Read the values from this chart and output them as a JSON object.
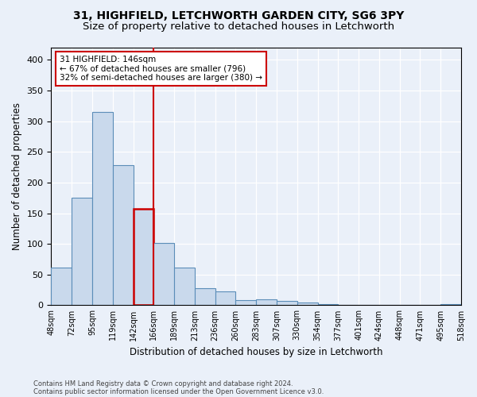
{
  "title1": "31, HIGHFIELD, LETCHWORTH GARDEN CITY, SG6 3PY",
  "title2": "Size of property relative to detached houses in Letchworth",
  "xlabel": "Distribution of detached houses by size in Letchworth",
  "ylabel": "Number of detached properties",
  "bar_values": [
    62,
    175,
    315,
    228,
    157,
    102,
    62,
    28,
    22,
    8,
    10,
    7,
    4,
    2,
    1,
    1,
    1,
    0,
    0,
    2
  ],
  "bar_labels": [
    "48sqm",
    "72sqm",
    "95sqm",
    "119sqm",
    "142sqm",
    "166sqm",
    "189sqm",
    "213sqm",
    "236sqm",
    "260sqm",
    "283sqm",
    "307sqm",
    "330sqm",
    "354sqm",
    "377sqm",
    "401sqm",
    "424sqm",
    "448sqm",
    "471sqm",
    "495sqm",
    "518sqm"
  ],
  "bar_color": "#c9d9ec",
  "bar_edge_color": "#5b8db8",
  "bar_edge_width": 0.8,
  "marker_bar_index": 4,
  "marker_color": "#cc0000",
  "annotation_line1": "31 HIGHFIELD: 146sqm",
  "annotation_line2": "← 67% of detached houses are smaller (796)",
  "annotation_line3": "32% of semi-detached houses are larger (380) →",
  "annotation_box_color": "#ffffff",
  "annotation_box_edge": "#cc0000",
  "ylim": [
    0,
    420
  ],
  "yticks": [
    0,
    50,
    100,
    150,
    200,
    250,
    300,
    350,
    400
  ],
  "background_color": "#eaf0f9",
  "footer1": "Contains HM Land Registry data © Crown copyright and database right 2024.",
  "footer2": "Contains public sector information licensed under the Open Government Licence v3.0.",
  "grid_color": "#ffffff",
  "title_fontsize": 10,
  "subtitle_fontsize": 9.5
}
